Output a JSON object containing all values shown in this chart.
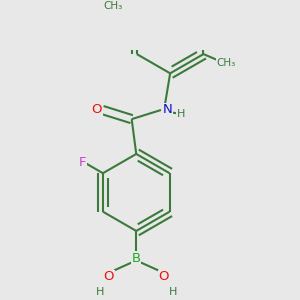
{
  "background_color": "#e8e8e8",
  "bond_color": "#3a7a3a",
  "bond_width": 1.5,
  "dbo": 0.055,
  "atom_colors": {
    "O": "#ee1111",
    "N": "#1111cc",
    "F": "#cc44cc",
    "B": "#22aa22",
    "C": "#3a7a3a",
    "H": "#3a7a3a"
  },
  "fontsize": 9.5
}
